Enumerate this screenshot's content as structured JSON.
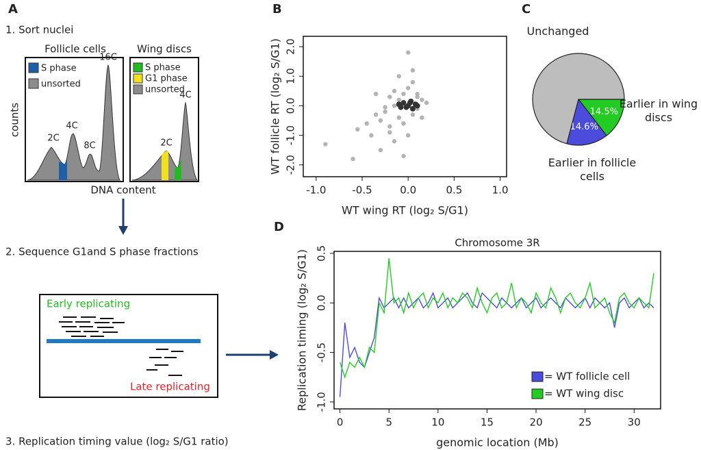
{
  "panel_a": {
    "letter": "A",
    "step1": "1. Sort nuclei",
    "follicle_title": "Follicle cells",
    "wing_title": "Wing discs",
    "follicle_legend": [
      "S phase",
      "unsorted"
    ],
    "wing_legend": [
      "S phase",
      "G1 phase",
      "unsorted"
    ],
    "follicle_peaks": [
      "2C",
      "4C",
      "8C",
      "16C"
    ],
    "wing_peaks": [
      "2C",
      "4C"
    ],
    "y_label": "counts",
    "x_label": "DNA content",
    "step2": "2. Sequence G1and S phase fractions",
    "early": "Early replicating",
    "late": "Late replicating",
    "step3": "3. Replication timing value (log₂ S/G1 ratio)"
  },
  "chart_data": [
    {
      "type": "scatter",
      "panel": "B",
      "xlabel": "WT wing RT (log₂ S/G1)",
      "ylabel": "WT follicle RT (log₂ S/G1)",
      "xlim": [
        -1.14,
        1.07
      ],
      "ylim": [
        -2.4,
        2.35
      ],
      "xticks": [
        {
          "value": -1,
          "label": "-1.0"
        },
        -0.5,
        {
          "value": 0,
          "label": "0.0"
        },
        0.5,
        {
          "value": 1,
          "label": "1.0"
        }
      ],
      "yticks": [
        {
          "value": 2,
          "label": "2.0"
        },
        {
          "value": 1,
          "label": "1.0"
        },
        {
          "value": 0,
          "label": "0.0"
        },
        {
          "value": -1,
          "label": "-1.0"
        },
        {
          "value": -2,
          "label": "-2.0"
        }
      ],
      "series": [
        {
          "color": "#b3b3b3",
          "x": [
            -0.9,
            -0.6,
            -0.55,
            -0.45,
            -0.4,
            -0.35,
            -0.3,
            -0.3,
            -0.25,
            -0.2,
            -0.2,
            -0.15,
            -0.15,
            -0.1,
            -0.1,
            -0.05,
            -0.05,
            0.0,
            0.0,
            0.05,
            0.05,
            0.1,
            0.1,
            0.15,
            0.15,
            0.2,
            -0.25,
            -0.35,
            -0.1,
            0.0,
            -0.05,
            0.05,
            -0.2,
            -0.15,
            0.1
          ],
          "y": [
            -1.3,
            -1.8,
            -0.8,
            -0.6,
            -1.0,
            -0.3,
            -0.5,
            -1.5,
            -0.2,
            -0.7,
            0.3,
            -1.2,
            0.5,
            -0.4,
            1.0,
            -1.7,
            0.4,
            1.8,
            -1.0,
            1.2,
            -0.3,
            0.4,
            -0.1,
            0.2,
            -0.4,
            0.1,
            -0.05,
            0.4,
            0.2,
            0.6,
            -0.6,
            0.8,
            -0.9,
            0.0,
            0.3
          ]
        },
        {
          "color": "#333333",
          "x": [
            -0.1,
            -0.05,
            -0.02,
            0.0,
            0.02,
            0.05,
            0.08,
            0.1,
            -0.08,
            0.03
          ],
          "y": [
            0.05,
            0.1,
            -0.05,
            0.0,
            0.1,
            -0.1,
            0.05,
            0.0,
            -0.05,
            0.15
          ]
        }
      ]
    },
    {
      "type": "pie",
      "panel": "C",
      "categories": [
        "Earlier in wing discs",
        "Earlier in follicle cells",
        "Unchanged"
      ],
      "values": [
        14.5,
        14.6,
        70.9
      ],
      "value_labels": [
        "14.5%",
        "14.6%",
        null
      ],
      "colors": [
        "#22cc22",
        "#4b4bdc",
        "#bdbdbd"
      ]
    },
    {
      "type": "line",
      "panel": "D",
      "title": "Chromosome 3R",
      "xlabel": "genomic location (Mb)",
      "ylabel": "Replication timing (log₂ S/G1)",
      "xlim": [
        -0.6,
        32.7
      ],
      "ylim": [
        -1.07,
        0.52
      ],
      "xticks": [
        0,
        5,
        10,
        15,
        20,
        25,
        30
      ],
      "yticks": [
        0.5,
        {
          "value": 0,
          "label": "0.0"
        },
        -0.5,
        {
          "value": -1,
          "label": "-1.0"
        }
      ],
      "x": [
        0,
        0.5,
        1,
        1.5,
        2,
        2.5,
        3,
        3.5,
        4,
        4.5,
        5,
        5.5,
        6,
        6.5,
        7,
        7.5,
        8,
        8.5,
        9,
        9.5,
        10,
        10.5,
        11,
        11.5,
        12,
        12.5,
        13,
        13.5,
        14,
        14.5,
        15,
        15.5,
        16,
        16.5,
        17,
        17.5,
        18,
        18.5,
        19,
        19.5,
        20,
        20.5,
        21,
        21.5,
        22,
        22.5,
        23,
        23.5,
        24,
        24.5,
        25,
        25.5,
        26,
        26.5,
        27,
        27.5,
        28,
        28.5,
        29,
        29.5,
        30,
        30.5,
        31,
        31.5,
        32
      ],
      "series": [
        {
          "name": "= WT follicle cell",
          "color": "#4b4bdc",
          "values": [
            -0.95,
            -0.2,
            -0.55,
            -0.45,
            -0.6,
            -0.65,
            -0.5,
            -0.35,
            0.05,
            -0.05,
            0.0,
            0.05,
            -0.05,
            0.05,
            -0.05,
            0.0,
            0.05,
            -0.05,
            0.0,
            0.1,
            -0.05,
            0.0,
            0.05,
            -0.05,
            0.0,
            0.05,
            0.1,
            0.0,
            -0.05,
            0.1,
            0.05,
            0.0,
            -0.05,
            0.05,
            0.0,
            -0.05,
            0.0,
            0.05,
            -0.05,
            0.0,
            0.05,
            -0.05,
            0.0,
            0.05,
            0.0,
            -0.05,
            0.05,
            0.0,
            -0.05,
            0.0,
            0.05,
            -0.05,
            0.05,
            0.0,
            -0.05,
            0.0,
            -0.25,
            0.0,
            0.05,
            -0.05,
            0.0,
            0.05,
            -0.05,
            0.0,
            -0.05
          ]
        },
        {
          "name": "= WT wing disc",
          "color": "#22cc22",
          "values": [
            -0.6,
            -0.75,
            -0.6,
            -0.65,
            -0.55,
            -0.65,
            -0.45,
            -0.5,
            0.0,
            -0.1,
            0.45,
            0.0,
            0.05,
            -0.1,
            0.1,
            -0.05,
            0.05,
            0.1,
            -0.05,
            0.05,
            0.0,
            0.1,
            -0.05,
            0.05,
            0.0,
            0.1,
            0.05,
            -0.05,
            0.15,
            0.0,
            -0.1,
            0.05,
            0.1,
            -0.05,
            0.0,
            0.2,
            -0.05,
            0.05,
            0.0,
            -0.1,
            0.1,
            0.0,
            -0.05,
            0.15,
            0.05,
            -0.1,
            0.05,
            0.1,
            0.0,
            -0.05,
            0.05,
            0.2,
            -0.05,
            0.0,
            0.05,
            -0.1,
            -0.2,
            0.05,
            0.1,
            0.0,
            -0.05,
            0.05,
            0.0,
            -0.05,
            0.3
          ]
        }
      ]
    }
  ]
}
